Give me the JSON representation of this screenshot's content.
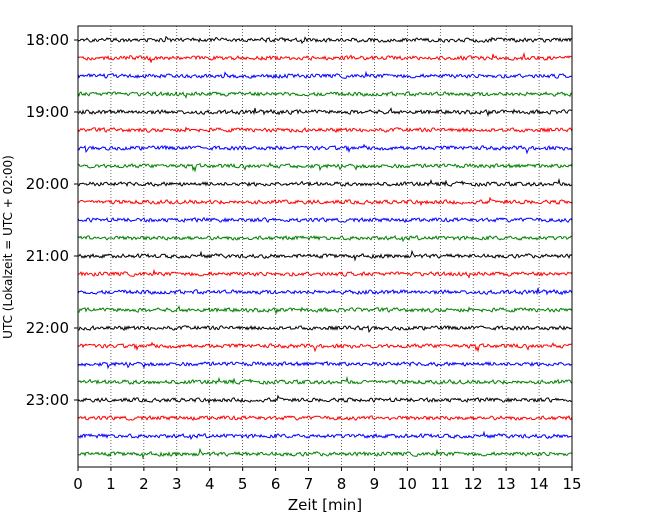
{
  "chart_data": {
    "type": "line",
    "title": "",
    "xlabel": "Zeit  [min]",
    "ylabel": "UTC (Lokalzeit = UTC + 02:00)",
    "xlim": [
      0,
      15
    ],
    "x_ticks": [
      0,
      1,
      2,
      3,
      4,
      5,
      6,
      7,
      8,
      9,
      10,
      11,
      12,
      13,
      14,
      15
    ],
    "x_tick_labels": [
      "0",
      "1",
      "2",
      "3",
      "4",
      "5",
      "6",
      "7",
      "8",
      "9",
      "10",
      "11",
      "12",
      "13",
      "14",
      "15"
    ],
    "y_tick_labels": [
      "18:00",
      "19:00",
      "20:00",
      "21:00",
      "22:00",
      "23:00"
    ],
    "traces_per_hour": 4,
    "trace_minutes": 15,
    "trace_start_labels": [
      "18:00",
      "18:15",
      "18:30",
      "18:45",
      "19:00",
      "19:15",
      "19:30",
      "19:45",
      "20:00",
      "20:15",
      "20:30",
      "20:45",
      "21:00",
      "21:15",
      "21:30",
      "21:45",
      "22:00",
      "22:15",
      "22:30",
      "22:45",
      "23:00",
      "23:15",
      "23:30",
      "23:45"
    ],
    "trace_colors": [
      "#000000",
      "#ff0000",
      "#0000ff",
      "#008000"
    ],
    "vertical_grid": true,
    "grid_style": "dotted"
  }
}
